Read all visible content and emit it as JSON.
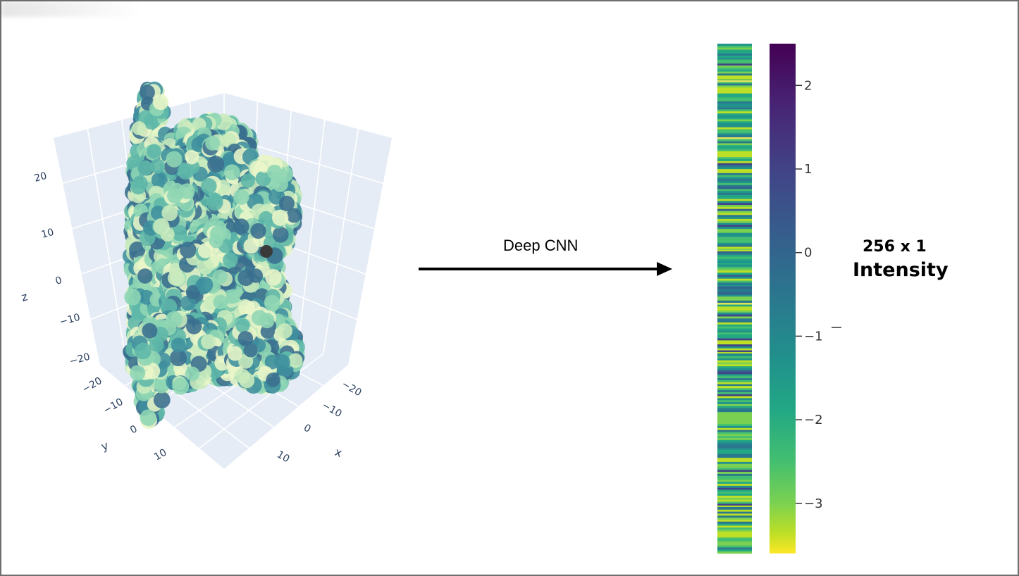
{
  "chart_data": [
    {
      "type": "scatter",
      "dimensions": 3,
      "axes": {
        "x": {
          "title": "x",
          "ticks": [
            "−20",
            "−10",
            "0",
            "10"
          ]
        },
        "y": {
          "title": "y",
          "ticks": [
            "−20",
            "−10",
            "0",
            "10"
          ]
        },
        "z": {
          "title": "z",
          "ticks": [
            "20",
            "10",
            "0",
            "−10",
            "−20"
          ]
        }
      },
      "background": "#e5ecf6",
      "colorscale": [
        "#e9f6c8",
        "#c9ebbd",
        "#8fd6b4",
        "#5fb7a8",
        "#3f8f9e",
        "#3a6e8e"
      ],
      "highlight_color": "#3a3a3a"
    },
    {
      "type": "heatmap",
      "rows": 256,
      "columns": 1,
      "colorscale": "viridis",
      "colorbar": {
        "min": -3.6,
        "max": 2.5,
        "ticks": [
          "2",
          "1",
          "0",
          "−1",
          "−2",
          "−3"
        ],
        "tick_values": [
          2,
          1,
          0,
          -1,
          -2,
          -3
        ]
      },
      "highlight_colors": [
        "#e3e35a",
        "#b5de2b"
      ]
    }
  ],
  "diagram": {
    "arrow_label": "Deep CNN",
    "output_size": "256 x 1",
    "output_label": "Intensity"
  }
}
